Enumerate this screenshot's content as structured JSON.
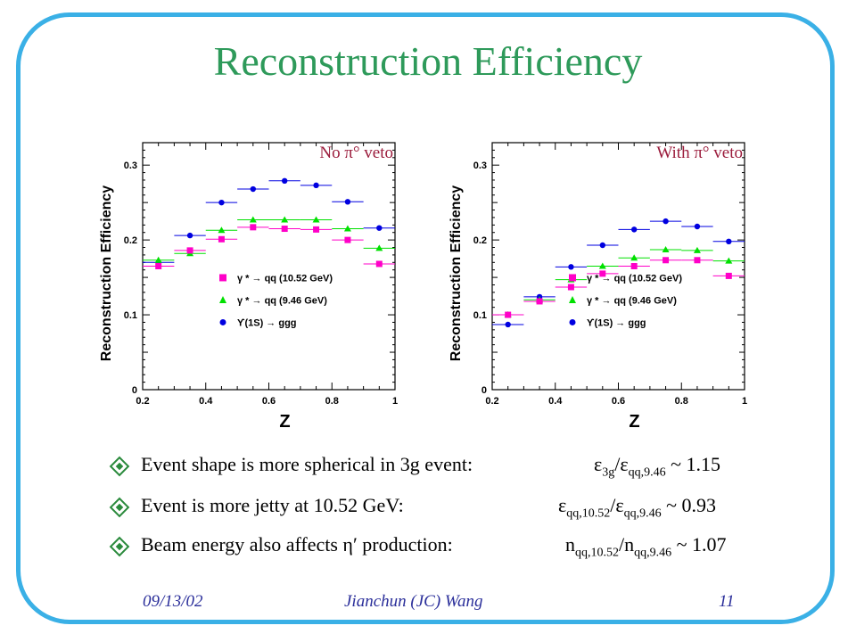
{
  "slide": {
    "title": "Reconstruction Efficiency",
    "footer": {
      "date": "09/13/02",
      "author": "Jianchun (JC) Wang",
      "page": "11"
    }
  },
  "bullets": [
    {
      "text": "Event shape is more spherical in 3g event:",
      "formula_parts": [
        "ε",
        "3g",
        "/ε",
        "qq,9.46",
        " ~ 1.15"
      ]
    },
    {
      "text": "Event is more jetty at 10.52 GeV:",
      "formula_parts": [
        "ε",
        "qq,10.52",
        "/ε",
        "qq,9.46",
        " ~ 0.93"
      ]
    },
    {
      "text": "Beam energy also affects η′ production:",
      "formula_parts": [
        "n",
        "qq,10.52",
        "/n",
        "qq,9.46",
        " ~ 1.07"
      ]
    }
  ],
  "colors": {
    "frame": "#3ab0e6",
    "title": "#2e9a5a",
    "bullet_diamond": "#2a8a3c",
    "footer": "#2a2e9a",
    "panel_label": "#9b1c3c",
    "series": [
      "#0000e0",
      "#00e000",
      "#ff00c8"
    ]
  },
  "chart_data": [
    {
      "type": "scatter",
      "panel_label": "No π° veto",
      "xlabel": "Z",
      "ylabel": "Reconstruction Efficiency",
      "xlim": [
        0.2,
        1.0
      ],
      "ylim": [
        0,
        0.33
      ],
      "xticks": [
        "0.2",
        "0.4",
        "0.6",
        "0.8",
        "1"
      ],
      "yticks": [
        "0",
        "0.1",
        "0.2",
        "0.3"
      ],
      "x": [
        0.25,
        0.35,
        0.45,
        0.55,
        0.65,
        0.75,
        0.85,
        0.95
      ],
      "series": [
        {
          "name": "ϒ(1S) → ggg",
          "marker": "circle",
          "values": [
            0.17,
            0.206,
            0.25,
            0.268,
            0.279,
            0.273,
            0.251,
            0.216
          ]
        },
        {
          "name": "γ * → qq (9.46 GeV)",
          "marker": "triangle",
          "values": [
            0.173,
            0.182,
            0.213,
            0.227,
            0.227,
            0.227,
            0.215,
            0.189
          ]
        },
        {
          "name": "γ * → qq (10.52 GeV)",
          "marker": "square",
          "values": [
            0.165,
            0.186,
            0.201,
            0.217,
            0.215,
            0.214,
            0.2,
            0.168
          ]
        }
      ]
    },
    {
      "type": "scatter",
      "panel_label": "With π° veto",
      "xlabel": "Z",
      "ylabel": "Reconstruction Efficiency",
      "xlim": [
        0.2,
        1.0
      ],
      "ylim": [
        0,
        0.33
      ],
      "xticks": [
        "0.2",
        "0.4",
        "0.6",
        "0.8",
        "1"
      ],
      "yticks": [
        "0",
        "0.1",
        "0.2",
        "0.3"
      ],
      "x": [
        0.25,
        0.35,
        0.45,
        0.55,
        0.65,
        0.75,
        0.85,
        0.95
      ],
      "series": [
        {
          "name": "ϒ(1S) → ggg",
          "marker": "circle",
          "values": [
            0.087,
            0.124,
            0.164,
            0.193,
            0.214,
            0.225,
            0.218,
            0.198
          ]
        },
        {
          "name": "γ * → qq (9.46 GeV)",
          "marker": "triangle",
          "values": [
            0.1,
            0.12,
            0.147,
            0.165,
            0.176,
            0.187,
            0.186,
            0.172
          ]
        },
        {
          "name": "γ * → qq (10.52 GeV)",
          "marker": "square",
          "values": [
            0.1,
            0.118,
            0.137,
            0.155,
            0.165,
            0.173,
            0.173,
            0.152
          ]
        }
      ]
    }
  ]
}
